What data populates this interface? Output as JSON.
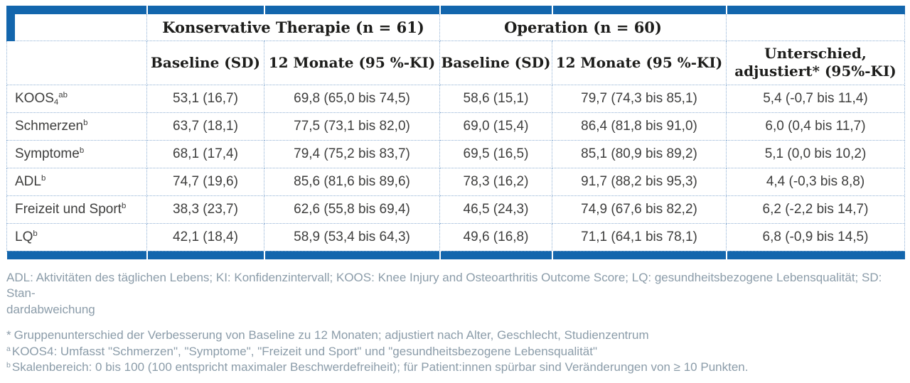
{
  "accent_color": "#1366ad",
  "dotted_border_color": "#8fb0d4",
  "footnote_color": "#8b9ca9",
  "table": {
    "group_headers": [
      "Konservative Therapie (n = 61)",
      "Operation (n = 60)"
    ],
    "col_headers": [
      "Baseline (SD)",
      "12 Monate (95 %-KI)",
      "Baseline (SD)",
      "12 Monate (95 %-KI)"
    ],
    "diff_header_line1": "Unterschied,",
    "diff_header_line2": "adjustiert* (95%-KI)",
    "rows": [
      {
        "label": "KOOS",
        "label_sub": "4",
        "label_sup": "ab",
        "cells": [
          "53,1 (16,7)",
          "69,8 (65,0 bis 74,5)",
          "58,6 (15,1)",
          "79,7 (74,3 bis 85,1)",
          "5,4 (-0,7 bis 11,4)"
        ]
      },
      {
        "label": "Schmerzen",
        "label_sup": "b",
        "cells": [
          "63,7 (18,1)",
          "77,5 (73,1 bis 82,0)",
          "69,0 (15,4)",
          "86,4 (81,8 bis 91,0)",
          "6,0 (0,4 bis 11,7)"
        ]
      },
      {
        "label": "Symptome",
        "label_sup": "b",
        "cells": [
          "68,1 (17,4)",
          "79,4 (75,2 bis 83,7)",
          "69,5 (16,5)",
          "85,1 (80,9 bis 89,2)",
          "5,1 (0,0 bis 10,2)"
        ]
      },
      {
        "label": "ADL",
        "label_sup": "b",
        "cells": [
          "74,7 (19,6)",
          "85,6 (81,6 bis 89,6)",
          "78,3 (16,2)",
          "91,7 (88,2 bis 95,3)",
          "4,4 (-0,3 bis 8,8)"
        ]
      },
      {
        "label": "Freizeit und Sport",
        "label_sup": "b",
        "cells": [
          "38,3 (23,7)",
          "62,6 (55,8 bis 69,4)",
          "46,5 (24,3)",
          "74,9 (67,6 bis 82,2)",
          "6,2 (-2,2 bis 14,7)"
        ]
      },
      {
        "label": "LQ",
        "label_sup": "b",
        "cells": [
          "42,1 (18,4)",
          "58,9 (53,4 bis 64,3)",
          "49,6 (16,8)",
          "71,1 (64,1 bis 78,1)",
          "6,8 (-0,9 bis 14,5)"
        ]
      }
    ]
  },
  "footnotes": {
    "abbrev_line1": "ADL: Aktivitäten des täglichen Lebens; KI: Konfidenzintervall; KOOS: Knee Injury and Osteoarthritis Outcome Score; LQ: gesundheitsbezogene Lebensqualität; SD: Stan-",
    "abbrev_line2": "dardabweichung",
    "notes": [
      {
        "marker": "*",
        "text": "Gruppenunterschied der Verbesserung von Baseline zu 12 Monaten; adjustiert nach Alter, Geschlecht, Studienzentrum"
      },
      {
        "marker": "a",
        "text": "KOOS4: Umfasst \"Schmerzen\", \"Symptome\", \"Freizeit und Sport\" und \"gesundheitsbezogene Lebensqualität\""
      },
      {
        "marker": "b",
        "text": "Skalenbereich: 0 bis 100 (100 entspricht maximaler Beschwerdefreiheit); für Patient:innen spürbar sind Veränderungen von ≥ 10 Punkten."
      }
    ]
  }
}
